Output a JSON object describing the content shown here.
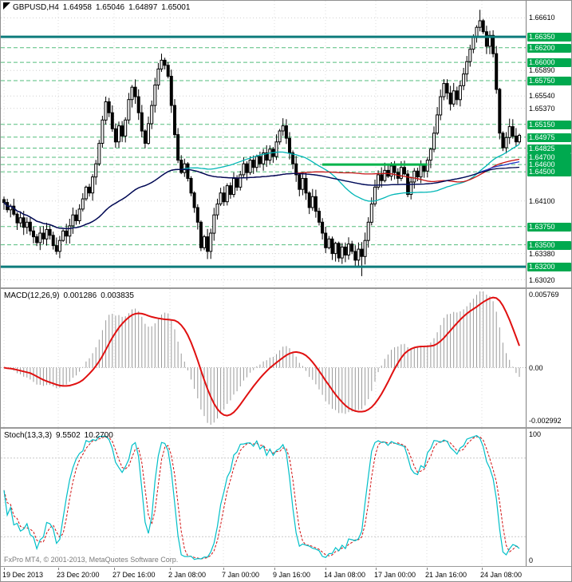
{
  "header": {
    "symbol": "GBPUSD,H4",
    "open": "1.64958",
    "high": "1.65046",
    "low": "1.64897",
    "close": "1.65001"
  },
  "macd_header": {
    "name": "MACD(12,26,9)",
    "value1": "0.001286",
    "value2": "0.003835"
  },
  "stoch_header": {
    "name": "Stoch(13,3,3)",
    "value1": "9.5502",
    "value2": "10.2700"
  },
  "footer": {
    "copyright": "FxPro MT4, © 2001-2013, MetaQuotes Software Corp."
  },
  "colors": {
    "level_label_bg": "#00a94f",
    "teal_line": "#0e7c7c",
    "green_dashed": "#53bd7c",
    "green_segment": "#00b44a",
    "candle": "#000000",
    "grid": "#cfcfcf"
  },
  "price_axis": {
    "ticks": [
      {
        "label": "1.66610",
        "value": 1.6661,
        "highlight": false
      },
      {
        "label": "1.66350",
        "value": 1.6635,
        "highlight": true
      },
      {
        "label": "1.66200",
        "value": 1.662,
        "highlight": true
      },
      {
        "label": "1.66000",
        "value": 1.66,
        "highlight": true
      },
      {
        "label": "1.65890",
        "value": 1.6589,
        "highlight": false
      },
      {
        "label": "1.65750",
        "value": 1.6575,
        "highlight": true
      },
      {
        "label": "1.65540",
        "value": 1.6554,
        "highlight": false
      },
      {
        "label": "1.65370",
        "value": 1.6537,
        "highlight": false
      },
      {
        "label": "1.65150",
        "value": 1.6515,
        "highlight": true
      },
      {
        "label": "1.64975",
        "value": 1.64975,
        "highlight": true
      },
      {
        "label": "1.64825",
        "value": 1.64825,
        "highlight": true
      },
      {
        "label": "1.64700",
        "value": 1.647,
        "highlight": true
      },
      {
        "label": "1.64600",
        "value": 1.646,
        "highlight": true
      },
      {
        "label": "1.64500",
        "value": 1.645,
        "highlight": true
      },
      {
        "label": "1.64100",
        "value": 1.641,
        "highlight": false
      },
      {
        "label": "1.63750",
        "value": 1.6375,
        "highlight": true
      },
      {
        "label": "1.63500",
        "value": 1.635,
        "highlight": true
      },
      {
        "label": "1.63380",
        "value": 1.6338,
        "highlight": false
      },
      {
        "label": "1.63200",
        "value": 1.632,
        "highlight": true
      },
      {
        "label": "1.63020",
        "value": 1.6302,
        "highlight": false
      }
    ]
  },
  "time_axis": {
    "labels": [
      "19 Dec 2013",
      "23 Dec 20:00",
      "27 Dec 16:00",
      "2 Jan 08:00",
      "7 Jan 00:00",
      "9 Jan 16:00",
      "14 Jan 08:00",
      "17 Jan 00:00",
      "21 Jan 16:00",
      "24 Jan 08:00"
    ],
    "x": [
      2,
      70,
      140,
      210,
      277,
      341,
      405,
      468,
      532,
      601
    ]
  },
  "chart_data": {
    "type": "candlestick",
    "symbol": "GBPUSD",
    "timeframe": "H4",
    "ohlc_display": {
      "open": "1.64958",
      "high": "1.65046",
      "low": "1.64897",
      "close": "1.65001"
    },
    "price_range": [
      1.6296,
      1.668
    ],
    "first_open": 1.6412,
    "closes": [
      1.6408,
      1.6398,
      1.6403,
      1.6392,
      1.638,
      1.6387,
      1.6374,
      1.6381,
      1.6369,
      1.6361,
      1.6353,
      1.6366,
      1.6358,
      1.6371,
      1.6363,
      1.6349,
      1.6341,
      1.6356,
      1.6369,
      1.6362,
      1.6376,
      1.6391,
      1.6383,
      1.6399,
      1.6413,
      1.6429,
      1.6421,
      1.6443,
      1.6461,
      1.6489,
      1.6521,
      1.6546,
      1.6531,
      1.6509,
      1.6491,
      1.6513,
      1.6499,
      1.6521,
      1.6549,
      1.6566,
      1.6553,
      1.6531,
      1.6506,
      1.6489,
      1.6516,
      1.6541,
      1.6569,
      1.6591,
      1.6603,
      1.6596,
      1.6581,
      1.6541,
      1.6501,
      1.6466,
      1.6449,
      1.6461,
      1.6441,
      1.6421,
      1.6401,
      1.6381,
      1.6346,
      1.6361,
      1.6341,
      1.6366,
      1.6391,
      1.6406,
      1.6421,
      1.6409,
      1.6431,
      1.6419,
      1.6441,
      1.6429,
      1.6446,
      1.6461,
      1.6449,
      1.6466,
      1.6456,
      1.6471,
      1.6461,
      1.6476,
      1.6466,
      1.6481,
      1.6471,
      1.6491,
      1.6506,
      1.6513,
      1.6496,
      1.6476,
      1.6461,
      1.6446,
      1.6426,
      1.6441,
      1.6421,
      1.6401,
      1.6416,
      1.6396,
      1.6381,
      1.6366,
      1.6346,
      1.6358,
      1.6338,
      1.6352,
      1.6332,
      1.6347,
      1.6336,
      1.6351,
      1.6341,
      1.6329,
      1.6344,
      1.6334,
      1.6356,
      1.6381,
      1.6406,
      1.6429,
      1.6446,
      1.6438,
      1.6452,
      1.6444,
      1.6458,
      1.6449,
      1.6441,
      1.6456,
      1.6447,
      1.6419,
      1.6436,
      1.6451,
      1.6443,
      1.6459,
      1.6451,
      1.6466,
      1.6481,
      1.6503,
      1.6528,
      1.6553,
      1.6571,
      1.6558,
      1.6543,
      1.6561,
      1.6549,
      1.6568,
      1.6584,
      1.6601,
      1.6618,
      1.6634,
      1.6648,
      1.6657,
      1.6642,
      1.6622,
      1.6637,
      1.6612,
      1.6563,
      1.6503,
      1.6483,
      1.6497,
      1.6512,
      1.6499,
      1.6491,
      1.65
    ],
    "wick_spikes": [
      {
        "index": 48,
        "high": 1.6612
      },
      {
        "index": 109,
        "low": 1.6307
      },
      {
        "index": 145,
        "high": 1.6672
      }
    ],
    "moving_averages": [
      {
        "kind": "sma",
        "period": 55,
        "color": "#00b6b6"
      },
      {
        "kind": "sma",
        "period": 89,
        "color": "#c41414"
      },
      {
        "kind": "sma",
        "period": 144,
        "color": "#2038c8"
      },
      {
        "kind": "sma",
        "period": 200,
        "color": "#000a50"
      }
    ],
    "levels": {
      "solid_teal": {
        "color": "#0e7c7c",
        "width": 3,
        "prices": [
          1.6635,
          1.632
        ]
      },
      "dashed_green": {
        "color": "#53bd7c",
        "prices": [
          1.662,
          1.66,
          1.6575,
          1.6515,
          1.64975,
          1.64825,
          1.647,
          1.646,
          1.645,
          1.6375,
          1.635
        ]
      },
      "segment": {
        "color": "#00b44a",
        "width": 3,
        "price": 1.646,
        "from_index": 97,
        "to_index": 129
      }
    },
    "indicators": {
      "macd": {
        "fast": 12,
        "slow": 26,
        "signal": 9,
        "current_macd": 0.001286,
        "current_signal": 0.003835,
        "histogram_color": "#9a9a9a",
        "signal_color": "#e01010",
        "axis_labels": {
          "max": "0.005769",
          "zero": "0.00",
          "min": "-0.002992"
        }
      },
      "stochastic": {
        "k": 13,
        "slowing": 3,
        "d": 3,
        "current_main": 9.5502,
        "current_signal": 10.27,
        "main_color": "#00bfc8",
        "signal_color": "#d01010",
        "levels": [
          20,
          80
        ],
        "axis_labels": {
          "max": "100",
          "min": "0"
        }
      }
    }
  }
}
